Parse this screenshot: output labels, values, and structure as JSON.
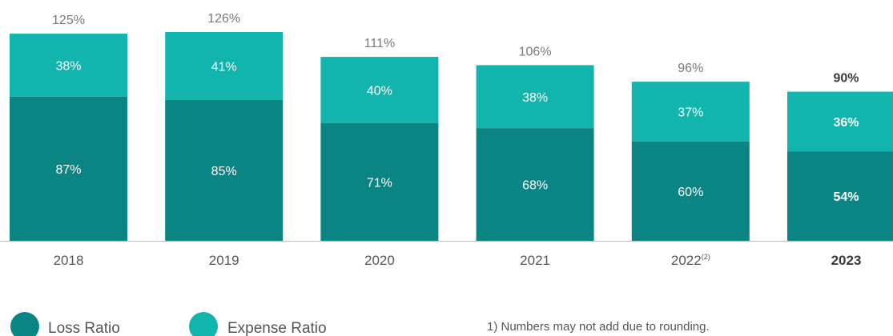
{
  "colors": {
    "loss": "#0b8584",
    "expense": "#12b5ad",
    "baseline": "#bfbfbf",
    "text": "#555555"
  },
  "chart_data": {
    "type": "bar",
    "stacked": true,
    "categories": [
      "2018",
      "2019",
      "2020",
      "2021",
      "2022",
      "2023"
    ],
    "category_superscripts": [
      "",
      "",
      "",
      "",
      "(2)",
      ""
    ],
    "highlight_index": 5,
    "series": [
      {
        "name": "Loss Ratio",
        "values": [
          87,
          85,
          71,
          68,
          60,
          54
        ]
      },
      {
        "name": "Expense Ratio",
        "values": [
          38,
          41,
          40,
          38,
          37,
          36
        ]
      }
    ],
    "totals": [
      125,
      126,
      111,
      106,
      96,
      90
    ],
    "value_suffix": "%",
    "ylim": [
      0,
      126
    ],
    "legend_position": "bottom-left",
    "footnote": "1)  Numbers may not add due to rounding."
  }
}
